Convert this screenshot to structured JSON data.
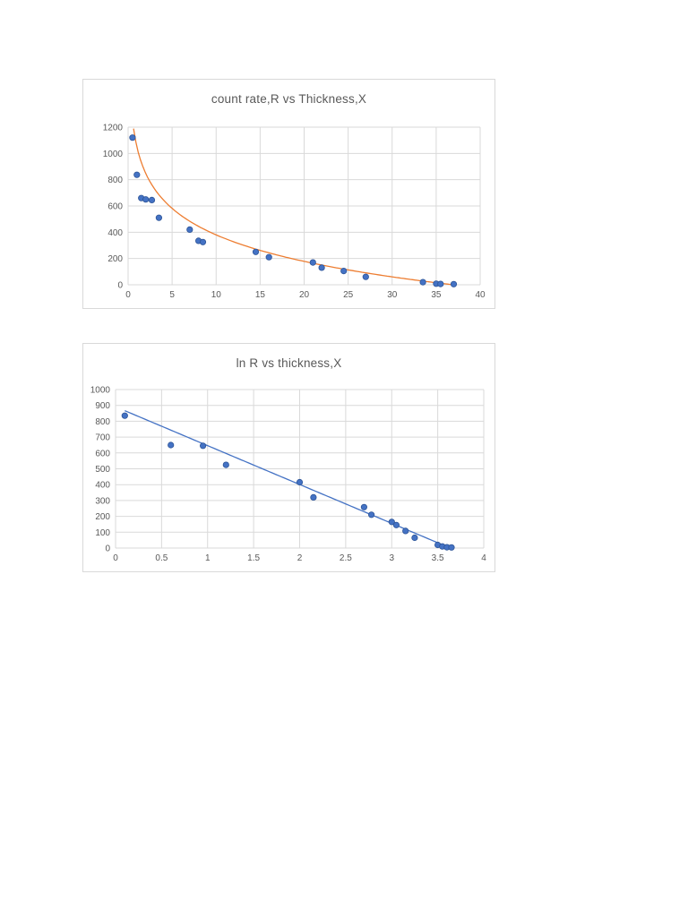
{
  "page": {
    "background_color": "#ffffff"
  },
  "chart_data": [
    {
      "type": "scatter",
      "title": "count rate,R vs Thickness,X",
      "xlabel": "",
      "ylabel": "",
      "xlim": [
        0,
        40
      ],
      "ylim": [
        0,
        1200
      ],
      "grid": true,
      "grid_color": "#d9d9d9",
      "x_ticks": [
        0,
        5,
        10,
        15,
        20,
        25,
        30,
        35,
        40
      ],
      "x_tick_labels": [
        "0",
        "5",
        "10",
        "15",
        "20",
        "25",
        "30",
        "35",
        "40"
      ],
      "y_ticks": [
        0,
        200,
        400,
        600,
        800,
        1000,
        1200
      ],
      "y_tick_labels": [
        "0",
        "200",
        "400",
        "600",
        "800",
        "1000",
        "1200"
      ],
      "series": [
        {
          "name": "count rate R",
          "marker": "circle",
          "color": "#4472C4",
          "edge_color": "#2E5597",
          "points": [
            [
              0.5,
              1120
            ],
            [
              1,
              837
            ],
            [
              1.5,
              660
            ],
            [
              2,
              650
            ],
            [
              2.7,
              645
            ],
            [
              3.5,
              510
            ],
            [
              7,
              420
            ],
            [
              8,
              335
            ],
            [
              8.5,
              325
            ],
            [
              14.5,
              250
            ],
            [
              16,
              210
            ],
            [
              21,
              170
            ],
            [
              22,
              130
            ],
            [
              24.5,
              105
            ],
            [
              27,
              60
            ],
            [
              33.5,
              20
            ],
            [
              35,
              8
            ],
            [
              35.5,
              6
            ],
            [
              37,
              5
            ]
          ]
        }
      ],
      "trendline": {
        "kind": "log",
        "a": 1050,
        "b": -291,
        "x_start": 0.62,
        "x_end": 37.3,
        "color": "#ED7D31"
      },
      "legend": "none"
    },
    {
      "type": "scatter",
      "title": "ln R vs thickness,X",
      "xlabel": "",
      "ylabel": "",
      "xlim": [
        0,
        4
      ],
      "ylim": [
        0,
        1000
      ],
      "grid": true,
      "grid_color": "#d9d9d9",
      "x_ticks": [
        0,
        0.5,
        1,
        1.5,
        2,
        2.5,
        3,
        3.5,
        4
      ],
      "x_tick_labels": [
        "0",
        "0.5",
        "1",
        "1.5",
        "2",
        "2.5",
        "3",
        "3.5",
        "4"
      ],
      "y_ticks": [
        0,
        100,
        200,
        300,
        400,
        500,
        600,
        700,
        800,
        900,
        1000
      ],
      "y_tick_labels": [
        "0",
        "100",
        "200",
        "300",
        "400",
        "500",
        "600",
        "700",
        "800",
        "900",
        "1000"
      ],
      "series": [
        {
          "name": "ln R",
          "marker": "circle",
          "color": "#4472C4",
          "edge_color": "#2E5597",
          "points": [
            [
              0.1,
              835
            ],
            [
              0.6,
              650
            ],
            [
              0.95,
              645
            ],
            [
              1.2,
              525
            ],
            [
              2.0,
              415
            ],
            [
              2.15,
              320
            ],
            [
              2.7,
              258
            ],
            [
              2.78,
              210
            ],
            [
              3.0,
              165
            ],
            [
              3.05,
              145
            ],
            [
              3.15,
              108
            ],
            [
              3.25,
              65
            ],
            [
              3.5,
              20
            ],
            [
              3.55,
              10
            ],
            [
              3.6,
              5
            ],
            [
              3.65,
              4
            ]
          ]
        }
      ],
      "trendline": {
        "kind": "linear",
        "a": 891,
        "b": -245,
        "x_start": 0.1,
        "x_end": 3.65,
        "color": "#4472C4"
      },
      "legend": "none"
    }
  ]
}
